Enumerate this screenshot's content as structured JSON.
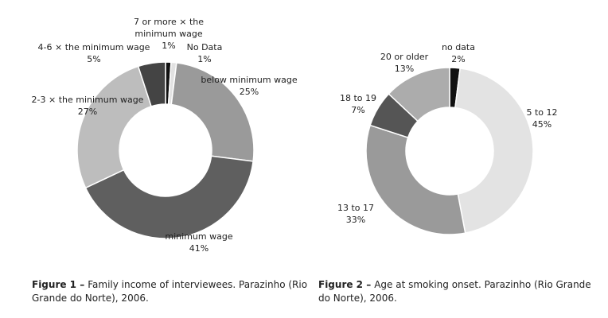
{
  "chart_data": [
    {
      "type": "donut",
      "caption_label": "Figure 1 –",
      "caption": "Family income of interviewees. Parazinho (Rio Grande do Norte), 2006.",
      "categories": [
        "7 or more × the minimum wage",
        "No Data",
        "below minimum wage",
        "minimum wage",
        "2-3 × the minimum wage",
        "4-6 × the minimum wage"
      ],
      "values": [
        1,
        1,
        25,
        41,
        27,
        5
      ],
      "value_labels": [
        "1%",
        "1%",
        "25%",
        "41%",
        "27%",
        "5%"
      ],
      "colors": [
        "#111111",
        "#e2e2e2",
        "#9a9a9a",
        "#5f5f5f",
        "#bdbdbd",
        "#444444"
      ]
    },
    {
      "type": "donut",
      "caption_label": "Figure 2 –",
      "caption": "Age at smoking onset. Parazinho (Rio Grande do Norte), 2006.",
      "categories": [
        "no data",
        "5 to 12",
        "13 to 17",
        "18 to 19",
        "20 or older"
      ],
      "values": [
        2,
        45,
        33,
        7,
        13
      ],
      "value_labels": [
        "2%",
        "45%",
        "33%",
        "7%",
        "13%"
      ],
      "colors": [
        "#111111",
        "#e3e3e3",
        "#9a9a9a",
        "#555555",
        "#acacac"
      ]
    }
  ]
}
